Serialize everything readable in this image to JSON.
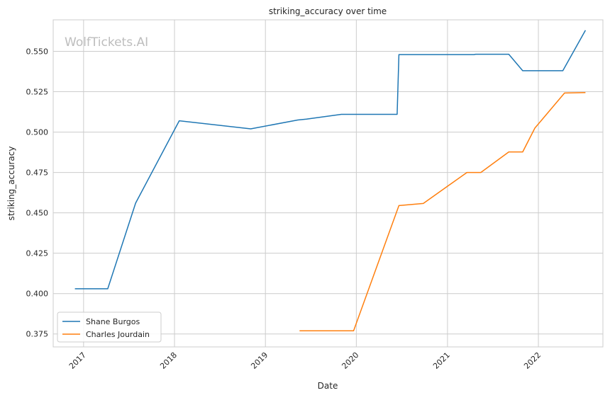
{
  "watermark": "WolfTickets.AI",
  "chart_data": {
    "type": "line",
    "title": "striking_accuracy over time",
    "xlabel": "Date",
    "ylabel": "striking_accuracy",
    "x_type": "date",
    "xlim": [
      "2016-09-01",
      "2022-09-17"
    ],
    "ylim": [
      0.367,
      0.5695
    ],
    "x_ticks": [
      {
        "value": "2017-01-01",
        "label": "2017"
      },
      {
        "value": "2018-01-01",
        "label": "2018"
      },
      {
        "value": "2019-01-01",
        "label": "2019"
      },
      {
        "value": "2020-01-01",
        "label": "2020"
      },
      {
        "value": "2021-01-01",
        "label": "2021"
      },
      {
        "value": "2022-01-01",
        "label": "2022"
      }
    ],
    "y_ticks": [
      0.375,
      0.4,
      0.425,
      0.45,
      0.475,
      0.5,
      0.525,
      0.55
    ],
    "y_tick_labels": [
      "0.375",
      "0.400",
      "0.425",
      "0.450",
      "0.475",
      "0.500",
      "0.525",
      "0.550"
    ],
    "grid": true,
    "legend_position": "lower-left",
    "series": [
      {
        "name": "Shane Burgos",
        "color": "#1f77b4",
        "points": [
          [
            "2016-11-27",
            0.403
          ],
          [
            "2017-04-08",
            0.403
          ],
          [
            "2017-07-29",
            0.456
          ],
          [
            "2018-01-20",
            0.507
          ],
          [
            "2018-11-03",
            0.502
          ],
          [
            "2019-05-11",
            0.5075
          ],
          [
            "2019-06-15",
            0.508
          ],
          [
            "2019-11-02",
            0.511
          ],
          [
            "2020-06-13",
            0.511
          ],
          [
            "2020-06-20",
            0.548
          ],
          [
            "2021-04-17",
            0.548
          ],
          [
            "2021-04-24",
            0.5482
          ],
          [
            "2021-09-04",
            0.5482
          ],
          [
            "2021-10-30",
            0.538
          ],
          [
            "2022-04-09",
            0.538
          ],
          [
            "2022-07-09",
            0.563
          ]
        ]
      },
      {
        "name": "Charles Jourdain",
        "color": "#ff7f0e",
        "points": [
          [
            "2019-05-18",
            0.377
          ],
          [
            "2019-12-21",
            0.377
          ],
          [
            "2020-06-20",
            0.4545
          ],
          [
            "2020-09-26",
            0.4558
          ],
          [
            "2021-03-20",
            0.475
          ],
          [
            "2021-05-15",
            0.475
          ],
          [
            "2021-09-04",
            0.4877
          ],
          [
            "2021-10-30",
            0.4877
          ],
          [
            "2021-12-18",
            0.5025
          ],
          [
            "2022-04-16",
            0.5242
          ],
          [
            "2022-07-09",
            0.5245
          ]
        ]
      }
    ]
  }
}
